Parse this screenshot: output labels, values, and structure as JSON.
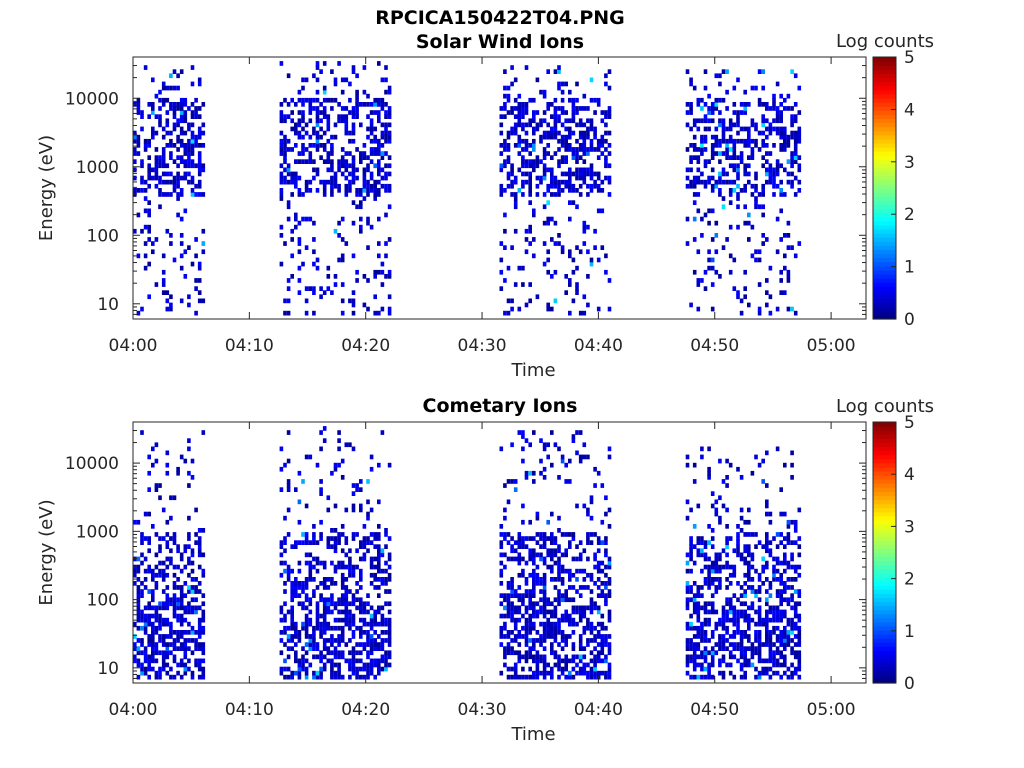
{
  "figure": {
    "title": "RPCICA150422T04.PNG"
  },
  "chart_data": [
    {
      "type": "heatmap",
      "title": "Solar Wind Ions",
      "xlabel": "Time",
      "ylabel": "Energy (eV)",
      "x_ticks": [
        "04:00",
        "04:10",
        "04:20",
        "04:30",
        "04:40",
        "04:50",
        "05:00"
      ],
      "x_range_minutes": [
        0,
        63
      ],
      "y_scale": "log",
      "y_ticks": [
        10,
        100,
        1000,
        10000
      ],
      "y_tick_labels": [
        "10",
        "100",
        "1000",
        "10000"
      ],
      "y_range": [
        6,
        40000
      ],
      "colorbar": {
        "label": "Log counts",
        "ticks": [
          0,
          1,
          2,
          3,
          4,
          5
        ],
        "range": [
          0,
          5
        ],
        "colormap": "jet"
      },
      "bursts": [
        {
          "start_min": 0.0,
          "end_min": 6.1,
          "emin": 7,
          "emax": 30000,
          "note": "broad 500-10000 eV, dense column 04:04-04:06 down to ~7 eV"
        },
        {
          "start_min": 12.6,
          "end_min": 22.1,
          "emin": 7,
          "emax": 35000,
          "note": "broad 400-8000 eV, dense column 04:16-04:19 down to ~7 eV"
        },
        {
          "start_min": 31.5,
          "end_min": 41.1,
          "emin": 7,
          "emax": 30000,
          "note": "broad 400-8000 eV, dense column 04:35-04:38 down to ~7 eV"
        },
        {
          "start_min": 47.5,
          "end_min": 57.3,
          "emin": 7,
          "emax": 25000,
          "note": "columns 04:48-04:51 and 04:54-04:57 down to ~7 eV, peak ~1.8 log counts near 1000 eV"
        }
      ],
      "max_log_counts_observed": 1.8
    },
    {
      "type": "heatmap",
      "title": "Cometary Ions",
      "xlabel": "Time",
      "ylabel": "Energy (eV)",
      "x_ticks": [
        "04:00",
        "04:10",
        "04:20",
        "04:30",
        "04:40",
        "04:50",
        "05:00"
      ],
      "x_range_minutes": [
        0,
        63
      ],
      "y_scale": "log",
      "y_ticks": [
        10,
        100,
        1000,
        10000
      ],
      "y_tick_labels": [
        "10",
        "100",
        "1000",
        "10000"
      ],
      "y_range": [
        6,
        40000
      ],
      "colorbar": {
        "label": "Log counts",
        "ticks": [
          0,
          1,
          2,
          3,
          4,
          5
        ],
        "range": [
          0,
          5
        ],
        "colormap": "jet"
      },
      "bursts": [
        {
          "start_min": 0.0,
          "end_min": 6.1,
          "emin": 7,
          "emax": 30000,
          "note": "sparse above 1000 eV, dense below 100 eV"
        },
        {
          "start_min": 12.6,
          "end_min": 22.1,
          "emin": 7,
          "emax": 35000,
          "note": "sparse above 1000 eV, dense below 100 eV"
        },
        {
          "start_min": 31.5,
          "end_min": 41.1,
          "emin": 7,
          "emax": 30000,
          "note": "sparse above 1000 eV, dense below 100 eV"
        },
        {
          "start_min": 47.5,
          "end_min": 57.3,
          "emin": 7,
          "emax": 18000,
          "note": "dense below 100 eV, streak ~1.7 log counts near 04:52 at 7-20 eV"
        }
      ],
      "max_log_counts_observed": 1.7
    }
  ]
}
